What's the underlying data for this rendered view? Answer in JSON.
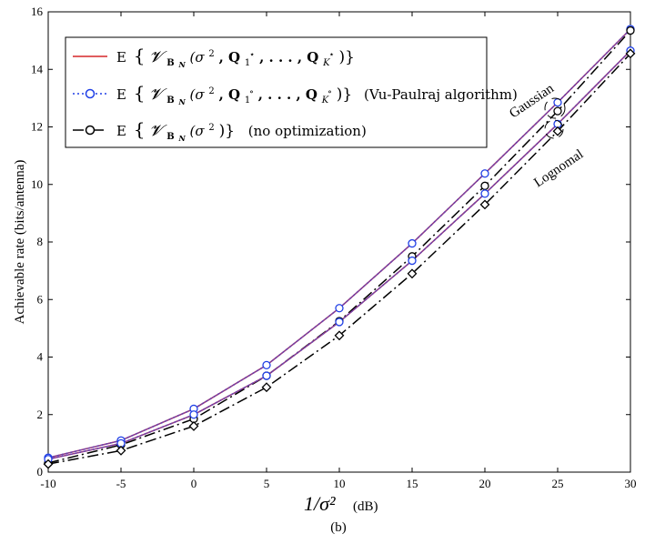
{
  "chart_data": {
    "type": "line",
    "title": "",
    "xlabel": "1/σ²",
    "xlabel_unit": "(dB)",
    "ylabel": "Achievable rate (bits/antenna)",
    "caption": "(b)",
    "x": [
      -10,
      -5,
      0,
      5,
      10,
      15,
      20,
      25,
      30
    ],
    "xlim": [
      -10,
      30
    ],
    "ylim": [
      0,
      16
    ],
    "x_ticks": [
      "-10",
      "-5",
      "0",
      "5",
      "10",
      "15",
      "20",
      "25",
      "30"
    ],
    "y_ticks": [
      "0",
      "2",
      "4",
      "6",
      "8",
      "10",
      "12",
      "14",
      "16"
    ],
    "legend": {
      "position": "top-left",
      "entries": [
        {
          "label": "E{𝓥_B_N(σ², Q₁★, …, Q_K★)}",
          "style": "solid-red",
          "color": "#d62728",
          "marker": "none"
        },
        {
          "label": "E{𝓥_B_N(σ², Q₁°, …, Q_K°)} (Vu-Paulraj algorithm)",
          "style": "dotted-blue",
          "color": "#1f3fe6",
          "marker": "circle"
        },
        {
          "label": "E{𝓥_B_N(σ²)} (no optimization)",
          "style": "dashdot-black",
          "color": "#000000",
          "marker": "circle"
        }
      ],
      "text": {
        "l1_expect": "E",
        "l1_brace_open": "{",
        "l1_V": "𝓥",
        "l1_sub": "B",
        "l1_subsub": "N",
        "l1_args_open": "(σ",
        "l1_sq": "2",
        "l1_Q1": ", Q",
        "l1_Q1sub": "1",
        "l1_Q1sup": "⋆",
        "l1_dots": ", . . . , Q",
        "l1_QKsub": "K",
        "l1_QKsup": "⋆",
        "l1_close": ")}",
        "l2_expect": "E",
        "l2_brace_open": "{",
        "l2_V": "𝓥",
        "l2_sub": "B",
        "l2_subsub": "N",
        "l2_args_open": "(σ",
        "l2_sq": "2",
        "l2_Q1": ", Q",
        "l2_Q1sub": "1",
        "l2_Q1sup": "∘",
        "l2_dots": ", . . . , Q",
        "l2_QKsub": "K",
        "l2_QKsup": "∘",
        "l2_close": ")}",
        "l2_note": "(Vu-Paulraj algorithm)",
        "l3_expect": "E",
        "l3_brace_open": "{",
        "l3_V": "𝓥",
        "l3_sub": "B",
        "l3_subsub": "N",
        "l3_args_open": "(σ",
        "l3_sq": "2",
        "l3_close": ")}",
        "l3_note": "(no optimization)"
      }
    },
    "annotations": {
      "gaussian": "Gaussian",
      "lognormal": "Lognomal"
    },
    "series": [
      {
        "name": "Gaussian optimal",
        "group": "gaussian",
        "color": "#d62728",
        "dash": "",
        "marker": "none",
        "values": [
          0.5,
          1.1,
          2.2,
          3.72,
          5.7,
          7.95,
          10.38,
          12.85,
          15.4
        ]
      },
      {
        "name": "Gaussian Vu-Paulraj",
        "group": "gaussian",
        "color": "#1f3fe6",
        "dash": "2,3",
        "marker": "circle",
        "markerColor": "#1f3fe6",
        "values": [
          0.5,
          1.1,
          2.2,
          3.72,
          5.7,
          7.95,
          10.38,
          12.85,
          15.4
        ]
      },
      {
        "name": "Gaussian no optimization",
        "group": "gaussian",
        "color": "#000000",
        "dash": "12,4,2,4",
        "marker": "circle",
        "markerColor": "#000000",
        "values": [
          0.32,
          0.95,
          1.85,
          3.35,
          5.25,
          7.5,
          9.95,
          12.55,
          15.35
        ]
      },
      {
        "name": "Lognormal optimal",
        "group": "lognormal",
        "color": "#d62728",
        "dash": "",
        "marker": "none",
        "values": [
          0.45,
          1.0,
          2.0,
          3.35,
          5.22,
          7.35,
          9.68,
          12.1,
          14.65
        ]
      },
      {
        "name": "Lognormal Vu-Paulraj",
        "group": "lognormal",
        "color": "#1f3fe6",
        "dash": "2,3",
        "marker": "circle",
        "markerColor": "#1f3fe6",
        "values": [
          0.45,
          1.0,
          2.0,
          3.35,
          5.22,
          7.35,
          9.68,
          12.1,
          14.65
        ]
      },
      {
        "name": "Lognormal no optimization",
        "group": "lognormal",
        "color": "#000000",
        "dash": "12,4,2,4",
        "marker": "diamond",
        "markerColor": "#000000",
        "values": [
          0.28,
          0.75,
          1.6,
          2.95,
          4.75,
          6.9,
          9.3,
          11.85,
          14.55
        ]
      }
    ],
    "overlay_purple": [
      {
        "color": "#7a3fa0",
        "values": [
          0.5,
          1.1,
          2.2,
          3.72,
          5.7,
          7.95,
          10.38,
          12.85,
          15.4
        ]
      },
      {
        "color": "#7a3fa0",
        "values": [
          0.45,
          1.0,
          2.0,
          3.35,
          5.22,
          7.35,
          9.68,
          12.1,
          14.65
        ]
      }
    ]
  }
}
